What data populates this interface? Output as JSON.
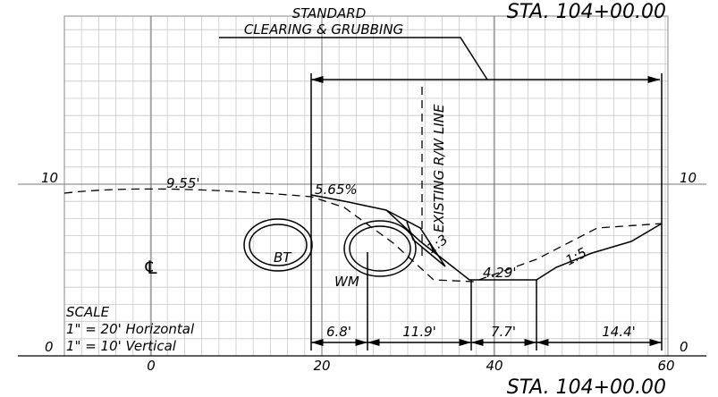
{
  "header": {
    "station_top": "STA. 104+00.00",
    "station": "STA. 104+00.00"
  },
  "callouts": {
    "clearing_1": "STANDARD",
    "clearing_2": "CLEARING & GRUBBING",
    "rw_line": "EXISTING R/W LINE"
  },
  "elevations": {
    "left_10": "10",
    "right_10": "10",
    "left_0": "0",
    "right_0": "0"
  },
  "offsets": [
    "0",
    "20",
    "40",
    "60"
  ],
  "annotations": {
    "existing_offset": "9.55'",
    "slope_pct": "5.65%",
    "slope_1": "1:3",
    "slope_2": "1:5",
    "ditch": "4.29'",
    "bt": "BT",
    "wm": "WM",
    "centerline": "℄"
  },
  "scale": {
    "title": "SCALE",
    "horizontal": "1\" = 20' Horizontal",
    "vertical": "1\" = 10' Vertical"
  },
  "dimensions": [
    "6.8'",
    "11.9'",
    "7.7'",
    "14.4'"
  ]
}
